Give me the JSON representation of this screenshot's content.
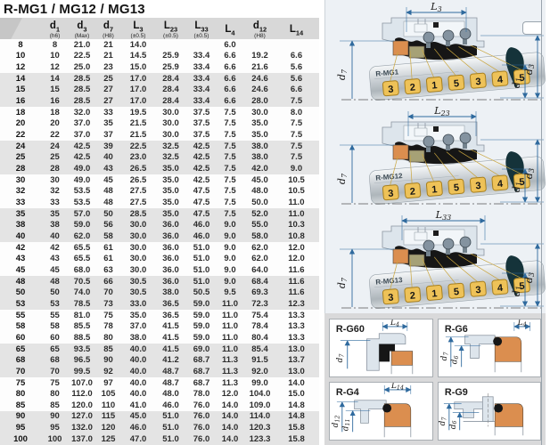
{
  "title": "R-MG1 / MG12 / MG13",
  "table": {
    "headers": [
      {
        "m": "",
        "s": "",
        "tol": ""
      },
      {
        "m": "d",
        "s": "1",
        "tol": "(h6)"
      },
      {
        "m": "d",
        "s": "3",
        "tol": "(Max)"
      },
      {
        "m": "d",
        "s": "7",
        "tol": "(H8)"
      },
      {
        "m": "L",
        "s": "3",
        "tol": "(±0.5)"
      },
      {
        "m": "L",
        "s": "23",
        "tol": "(±0.5)"
      },
      {
        "m": "L",
        "s": "33",
        "tol": "(±0.5)"
      },
      {
        "m": "L",
        "s": "4",
        "tol": ""
      },
      {
        "m": "d",
        "s": "12",
        "tol": "(H8)"
      },
      {
        "m": "L",
        "s": "14",
        "tol": ""
      }
    ],
    "rows": [
      [
        "8",
        "8",
        "21.0",
        "21",
        "14.0",
        "",
        "",
        "6.0",
        "",
        ""
      ],
      [
        "10",
        "10",
        "22.5",
        "21",
        "14.5",
        "25.9",
        "33.4",
        "6.6",
        "19.2",
        "6.6"
      ],
      [
        "12",
        "12",
        "25.0",
        "23",
        "15.0",
        "25.9",
        "33.4",
        "6.6",
        "21.6",
        "5.6"
      ],
      [
        "14",
        "14",
        "28.5",
        "25",
        "17.0",
        "28.4",
        "33.4",
        "6.6",
        "24.6",
        "5.6"
      ],
      [
        "15",
        "15",
        "28.5",
        "27",
        "17.0",
        "28.4",
        "33.4",
        "6.6",
        "24.6",
        "6.6"
      ],
      [
        "16",
        "16",
        "28.5",
        "27",
        "17.0",
        "28.4",
        "33.4",
        "6.6",
        "28.0",
        "7.5"
      ],
      [
        "18",
        "18",
        "32.0",
        "33",
        "19.5",
        "30.0",
        "37.5",
        "7.5",
        "30.0",
        "8.0"
      ],
      [
        "20",
        "20",
        "37.0",
        "35",
        "21.5",
        "30.0",
        "37.5",
        "7.5",
        "35.0",
        "7.5"
      ],
      [
        "22",
        "22",
        "37.0",
        "37",
        "21.5",
        "30.0",
        "37.5",
        "7.5",
        "35.0",
        "7.5"
      ],
      [
        "24",
        "24",
        "42.5",
        "39",
        "22.5",
        "32.5",
        "42.5",
        "7.5",
        "38.0",
        "7.5"
      ],
      [
        "25",
        "25",
        "42.5",
        "40",
        "23.0",
        "32.5",
        "42.5",
        "7.5",
        "38.0",
        "7.5"
      ],
      [
        "28",
        "28",
        "49.0",
        "43",
        "26.5",
        "35.0",
        "42.5",
        "7.5",
        "42.0",
        "9.0"
      ],
      [
        "30",
        "30",
        "49.0",
        "45",
        "26.5",
        "35.0",
        "42.5",
        "7.5",
        "45.0",
        "10.5"
      ],
      [
        "32",
        "32",
        "53.5",
        "48",
        "27.5",
        "35.0",
        "47.5",
        "7.5",
        "48.0",
        "10.5"
      ],
      [
        "33",
        "33",
        "53.5",
        "48",
        "27.5",
        "35.0",
        "47.5",
        "7.5",
        "50.0",
        "11.0"
      ],
      [
        "35",
        "35",
        "57.0",
        "50",
        "28.5",
        "35.0",
        "47.5",
        "7.5",
        "52.0",
        "11.0"
      ],
      [
        "38",
        "38",
        "59.0",
        "56",
        "30.0",
        "36.0",
        "46.0",
        "9.0",
        "55.0",
        "10.3"
      ],
      [
        "40",
        "40",
        "62.0",
        "58",
        "30.0",
        "36.0",
        "46.0",
        "9.0",
        "58.0",
        "10.8"
      ],
      [
        "42",
        "42",
        "65.5",
        "61",
        "30.0",
        "36.0",
        "51.0",
        "9.0",
        "62.0",
        "12.0"
      ],
      [
        "43",
        "43",
        "65.5",
        "61",
        "30.0",
        "36.0",
        "51.0",
        "9.0",
        "62.0",
        "12.0"
      ],
      [
        "45",
        "45",
        "68.0",
        "63",
        "30.0",
        "36.0",
        "51.0",
        "9.0",
        "64.0",
        "11.6"
      ],
      [
        "48",
        "48",
        "70.5",
        "66",
        "30.5",
        "36.0",
        "51.0",
        "9.0",
        "68.4",
        "11.6"
      ],
      [
        "50",
        "50",
        "74.0",
        "70",
        "30.5",
        "38.0",
        "50.5",
        "9.5",
        "69.3",
        "11.6"
      ],
      [
        "53",
        "53",
        "78.5",
        "73",
        "33.0",
        "36.5",
        "59.0",
        "11.0",
        "72.3",
        "12.3"
      ],
      [
        "55",
        "55",
        "81.0",
        "75",
        "35.0",
        "36.5",
        "59.0",
        "11.0",
        "75.4",
        "13.3"
      ],
      [
        "58",
        "58",
        "85.5",
        "78",
        "37.0",
        "41.5",
        "59.0",
        "11.0",
        "78.4",
        "13.3"
      ],
      [
        "60",
        "60",
        "88.5",
        "80",
        "38.0",
        "41.5",
        "59.0",
        "11.0",
        "80.4",
        "13.3"
      ],
      [
        "65",
        "65",
        "93.5",
        "85",
        "40.0",
        "41.5",
        "69.0",
        "11.0",
        "85.4",
        "13.0"
      ],
      [
        "68",
        "68",
        "96.5",
        "90",
        "40.0",
        "41.2",
        "68.7",
        "11.3",
        "91.5",
        "13.7"
      ],
      [
        "70",
        "70",
        "99.5",
        "92",
        "40.0",
        "48.7",
        "68.7",
        "11.3",
        "92.0",
        "13.0"
      ],
      [
        "75",
        "75",
        "107.0",
        "97",
        "40.0",
        "48.7",
        "68.7",
        "11.3",
        "99.0",
        "14.0"
      ],
      [
        "80",
        "80",
        "112.0",
        "105",
        "40.0",
        "48.0",
        "78.0",
        "12.0",
        "104.0",
        "15.0"
      ],
      [
        "85",
        "85",
        "120.0",
        "110",
        "41.0",
        "46.0",
        "76.0",
        "14.0",
        "109.0",
        "14.8"
      ],
      [
        "90",
        "90",
        "127.0",
        "115",
        "45.0",
        "51.0",
        "76.0",
        "14.0",
        "114.0",
        "14.8"
      ],
      [
        "95",
        "95",
        "132.0",
        "120",
        "46.0",
        "51.0",
        "76.0",
        "14.0",
        "120.3",
        "15.8"
      ],
      [
        "100",
        "100",
        "137.0",
        "125",
        "47.0",
        "51.0",
        "76.0",
        "14.0",
        "123.3",
        "15.8"
      ]
    ]
  },
  "diagrams": [
    {
      "label": "R-MG1",
      "dim_m": "L",
      "dim_s": "3"
    },
    {
      "label": "R-MG12",
      "dim_m": "L",
      "dim_s": "23"
    },
    {
      "label": "R-MG13",
      "dim_m": "L",
      "dim_s": "33"
    }
  ],
  "diagram_common": {
    "balloons": [
      "3",
      "2",
      "1",
      "5",
      "3",
      "4",
      "5"
    ],
    "left_dim_m": "d",
    "left_dim_s": "7",
    "right_dim1_m": "d",
    "right_dim1_s": "1",
    "right_dim2_m": "d",
    "right_dim2_s": "3"
  },
  "bottom_panels": [
    {
      "name": "R-G60",
      "top_m": "L",
      "top_s": "4",
      "dA_m": "d",
      "dA_s": "7",
      "dB_m": "",
      "dB_s": ""
    },
    {
      "name": "R-G6",
      "top_m": "L",
      "top_s": "4",
      "dA_m": "d",
      "dA_s": "7",
      "dB_m": "d",
      "dB_s": "6"
    },
    {
      "name": "R-G4",
      "top_m": "L",
      "top_s": "14",
      "dA_m": "d",
      "dA_s": "12",
      "dB_m": "d",
      "dB_s": "11"
    },
    {
      "name": "R-G9",
      "top_m": "",
      "top_s": "",
      "dA_m": "d",
      "dA_s": "7",
      "dB_m": "d",
      "dB_s": "6"
    }
  ],
  "colors": {
    "dim": "#2f6a9e",
    "housing": "#dde5ec",
    "housing-stroke": "#8b95a0",
    "orange": "#db8e4f",
    "olive": "#a6a176",
    "gold": "#eec258",
    "gold-stroke": "#a8801f",
    "band": "#e4e4e4",
    "header-bg": "#d8d8d8"
  }
}
